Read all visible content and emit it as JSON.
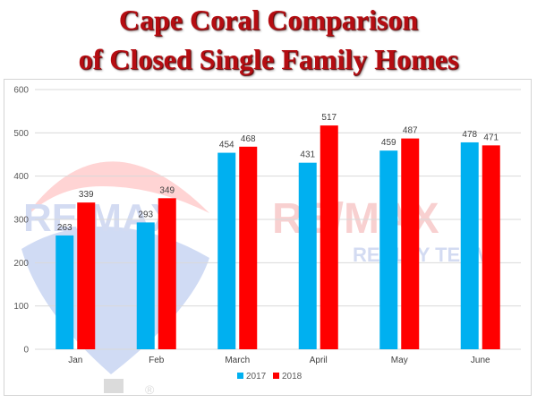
{
  "title": {
    "line1": "Cape Coral Comparison",
    "line2": "of Closed Single Family Homes"
  },
  "watermark": {
    "brand_left": "RE/MAX",
    "brand_right": "RE/MAX",
    "tagline": "REALTY TEAM",
    "registered": "®"
  },
  "colors": {
    "title": "#b50d12",
    "series_2017": "#00b0f0",
    "series_2018": "#ff0000",
    "grid": "#d9d9d9"
  },
  "chart_data": {
    "type": "bar",
    "title": "Cape Coral Comparison of Closed Single Family Homes",
    "xlabel": "",
    "ylabel": "",
    "categories": [
      "Jan",
      "Feb",
      "March",
      "April",
      "May",
      "June"
    ],
    "series": [
      {
        "name": "2017",
        "color": "#00b0f0",
        "values": [
          263,
          293,
          454,
          431,
          459,
          478
        ]
      },
      {
        "name": "2018",
        "color": "#ff0000",
        "values": [
          339,
          349,
          468,
          517,
          487,
          471
        ]
      }
    ],
    "ylim": [
      0,
      600
    ],
    "yticks": [
      0,
      100,
      200,
      300,
      400,
      500,
      600
    ],
    "grid": true,
    "legend": "bottom-center",
    "data_labels": true
  }
}
